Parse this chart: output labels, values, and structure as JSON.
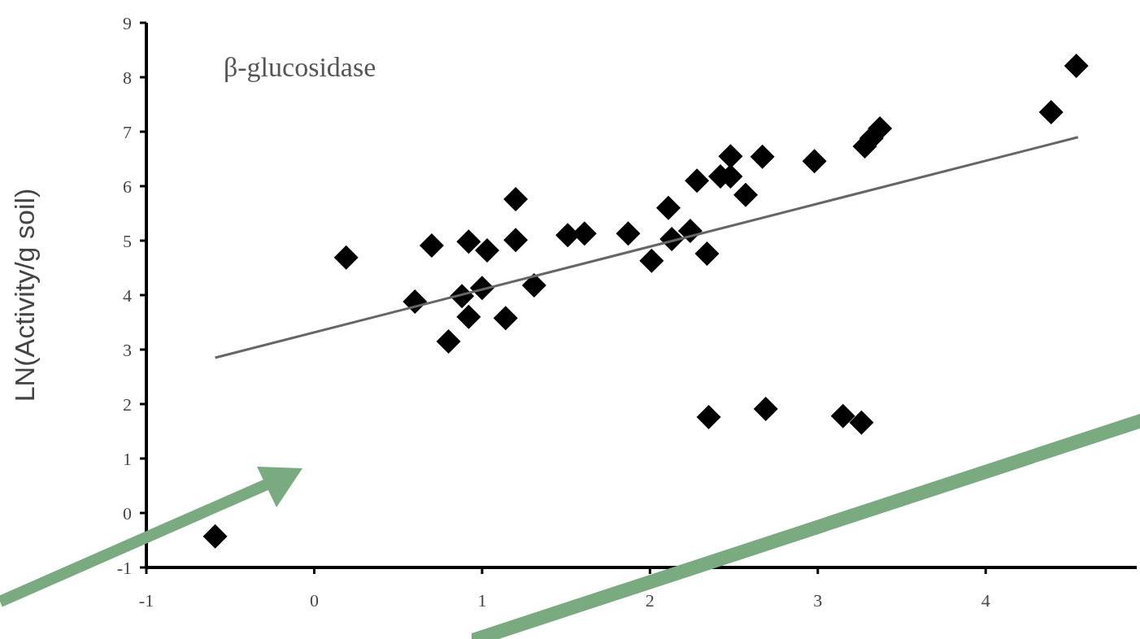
{
  "chart_data": {
    "type": "scatter",
    "title": "β-glucosidase",
    "ylabel": "LN(Activity/g soil)",
    "xlim": [
      -1,
      4.9
    ],
    "xticks": [
      -1,
      0,
      1,
      2,
      3,
      4
    ],
    "ylim": [
      -1,
      9
    ],
    "yticks": [
      -1,
      0,
      1,
      2,
      3,
      4,
      5,
      6,
      7,
      8,
      9
    ],
    "grid": false,
    "marker": "diamond",
    "series": [
      {
        "color": "#000000",
        "x": [
          -0.59,
          0.19,
          0.6,
          0.7,
          0.88,
          0.92,
          0.92,
          0.8,
          1.0,
          1.03,
          1.14,
          1.2,
          1.2,
          1.31,
          1.51,
          1.61,
          1.87,
          2.01,
          2.11,
          2.13,
          2.24,
          2.28,
          2.34,
          2.35,
          2.42,
          2.48,
          2.48,
          2.57,
          2.67,
          2.69,
          2.98,
          3.15,
          3.26,
          3.28,
          3.32,
          3.37,
          4.39,
          4.54
        ],
        "values": [
          -0.43,
          4.69,
          3.88,
          4.91,
          3.98,
          4.98,
          3.6,
          3.15,
          4.13,
          4.82,
          3.58,
          5.76,
          5.01,
          4.18,
          5.1,
          5.13,
          5.13,
          4.63,
          5.6,
          5.03,
          5.18,
          6.1,
          4.76,
          1.76,
          6.18,
          6.55,
          6.18,
          5.84,
          6.54,
          1.91,
          6.46,
          1.78,
          1.66,
          6.73,
          6.88,
          7.06,
          7.36,
          8.21
        ]
      },
      {
        "type": "line",
        "color": "#666666",
        "marker": "none",
        "x": [
          -0.59,
          4.55
        ],
        "values": [
          2.85,
          6.9
        ]
      }
    ]
  }
}
